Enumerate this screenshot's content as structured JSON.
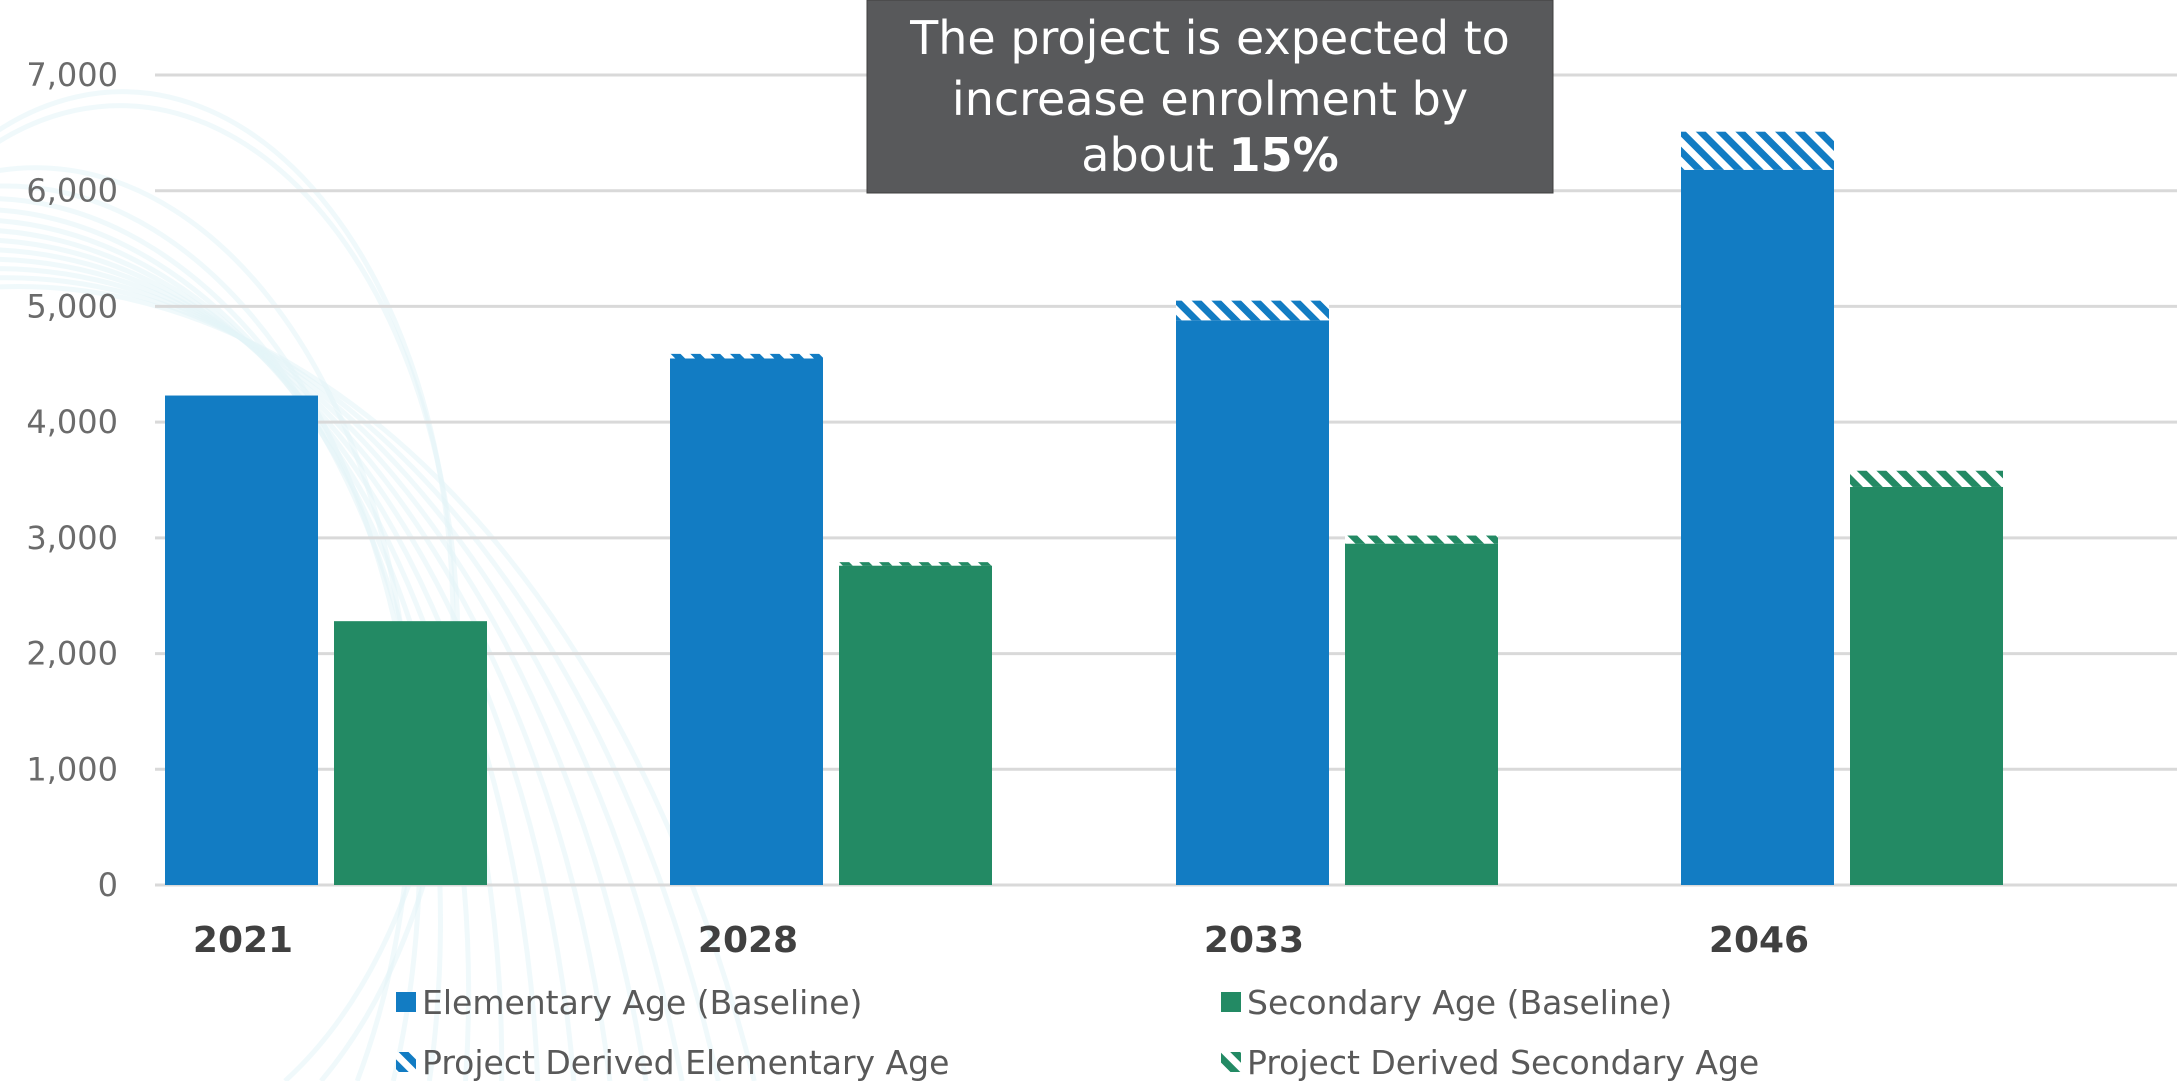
{
  "colors": {
    "elementary": "#127CC3",
    "secondary": "#238A64",
    "grid": "#D9D9D9",
    "axis_text": "#6B6B6B",
    "category_text": "#404040",
    "callout_bg": "#58595B",
    "background_arc": "#E3F4F8"
  },
  "callout": {
    "line1": "The project is expected to",
    "line2": "increase enrolment by",
    "line3_prefix": "about ",
    "line3_bold": "15%"
  },
  "legend": {
    "elementary_baseline": "Elementary Age (Baseline)",
    "secondary_baseline": "Secondary Age (Baseline)",
    "elementary_project": "Project Derived Elementary Age",
    "secondary_project": "Project Derived Secondary Age"
  },
  "chart_data": {
    "type": "bar",
    "stacked_within_group": true,
    "categories": [
      "2021",
      "2028",
      "2033",
      "2046"
    ],
    "ylim": [
      0,
      7000
    ],
    "yticks": [
      0,
      1000,
      2000,
      3000,
      4000,
      5000,
      6000,
      7000
    ],
    "ytick_labels": [
      "0",
      "1,000",
      "2,000",
      "3,000",
      "4,000",
      "5,000",
      "6,000",
      "7,000"
    ],
    "grid": true,
    "legend_position": "bottom",
    "series": [
      {
        "name": "Elementary Age (Baseline)",
        "group": "elementary",
        "pattern": "solid",
        "values": [
          4230,
          4550,
          4880,
          6180
        ]
      },
      {
        "name": "Project Derived Elementary Age",
        "group": "elementary",
        "pattern": "hatched",
        "values": [
          0,
          40,
          170,
          330
        ]
      },
      {
        "name": "Secondary Age (Baseline)",
        "group": "secondary",
        "pattern": "solid",
        "values": [
          2280,
          2760,
          2950,
          3440
        ]
      },
      {
        "name": "Project Derived Secondary Age",
        "group": "secondary",
        "pattern": "hatched",
        "values": [
          0,
          30,
          70,
          140
        ]
      }
    ]
  }
}
